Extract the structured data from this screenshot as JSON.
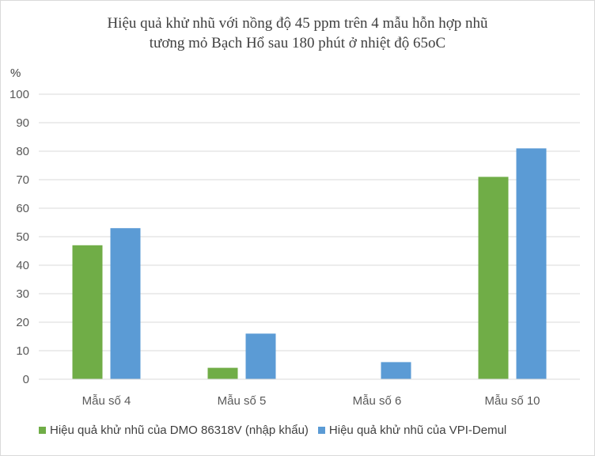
{
  "chart_data": {
    "type": "bar",
    "title_lines": [
      "Hiệu quả khử nhũ với nồng độ 45 ppm trên 4 mẫu hỗn hợp nhũ",
      "tương mỏ Bạch Hổ sau 180 phút ở nhiệt độ 65oC"
    ],
    "ylabel": "%",
    "xlabel": "",
    "categories": [
      "Mẫu số 4",
      "Mẫu số 5",
      "Mẫu số 6",
      "Mẫu số 10"
    ],
    "series": [
      {
        "name": "Hiệu quả khử nhũ của DMO 86318V (nhập khẩu)",
        "color": "#70ad47",
        "values": [
          47,
          4,
          0,
          71
        ]
      },
      {
        "name": "Hiệu quả khử nhũ của VPI-Demul",
        "color": "#5b9bd5",
        "values": [
          53,
          16,
          6,
          81
        ]
      }
    ],
    "ylim": [
      0,
      100
    ],
    "yticks": [
      "0",
      "10",
      "20",
      "30",
      "40",
      "50",
      "60",
      "70",
      "80",
      "90",
      "100"
    ],
    "grid": true,
    "legend_position": "bottom"
  }
}
